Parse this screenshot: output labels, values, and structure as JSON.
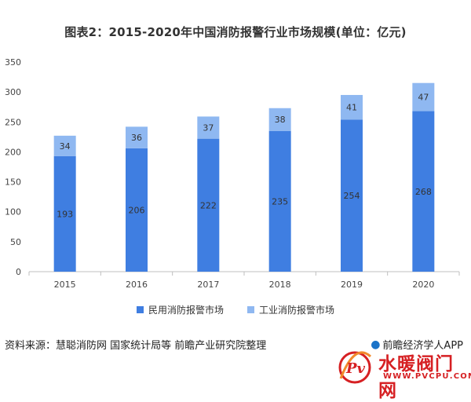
{
  "header": {
    "title": "图表2：2015-2020年中国消防报警行业市场规模(单位：亿元)"
  },
  "chart_data": {
    "type": "bar",
    "stacked": true,
    "title": "图表2：2015-2020年中国消防报警行业市场规模(单位：亿元)",
    "categories": [
      "2015",
      "2016",
      "2017",
      "2018",
      "2019",
      "2020"
    ],
    "series": [
      {
        "name": "民用消防报警市场",
        "values": [
          193,
          206,
          222,
          235,
          254,
          268
        ],
        "color": "#3f7ee1"
      },
      {
        "name": "工业消防报警市场",
        "values": [
          34,
          36,
          37,
          38,
          41,
          47
        ],
        "color": "#8fb8f1"
      }
    ],
    "ylim": [
      0,
      350
    ],
    "yticks": [
      "0",
      "50",
      "100",
      "150",
      "200",
      "250",
      "300",
      "350"
    ],
    "grid": false,
    "legend_position": "bottom"
  },
  "footer": {
    "source": "资料来源：慧聪消防网 国家统计局等 前瞻产业研究院整理",
    "brand": "前瞻经济学人APP",
    "brand_icon": "qianzhan-logo-icon"
  },
  "badge": {
    "title": "水暖阀门网",
    "url": "WWW.PVCPU.COM",
    "icon": "pv-logo-icon",
    "color": "#d62023"
  }
}
